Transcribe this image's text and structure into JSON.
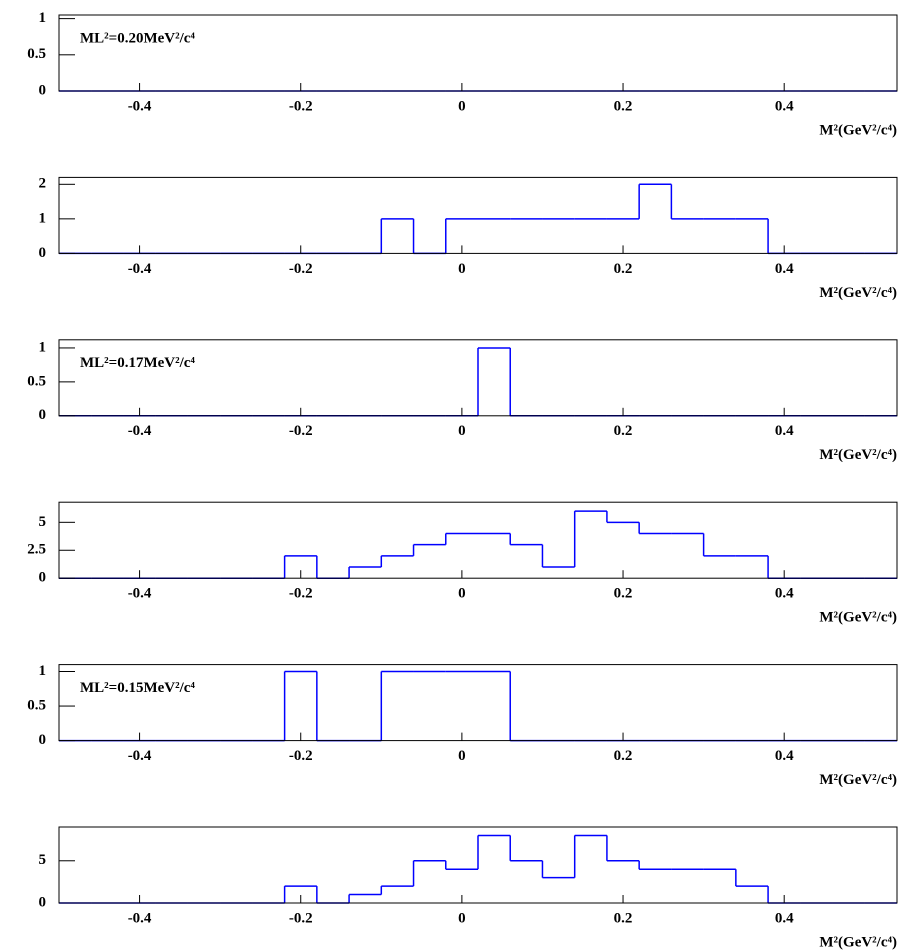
{
  "chart_data": [
    {
      "type": "histogram",
      "annotation": "ML²=0.20MeV²/c⁴",
      "xlabel": "M²(GeV²/c⁴)",
      "color": "#0000ff",
      "bins": [
        -0.5,
        -0.46,
        -0.42,
        -0.38,
        -0.34,
        -0.3,
        -0.26,
        -0.22,
        -0.18,
        -0.14,
        -0.1,
        -0.06,
        -0.02,
        0.02,
        0.06,
        0.1,
        0.14,
        0.18,
        0.22,
        0.26,
        0.3,
        0.34,
        0.38,
        0.42,
        0.46,
        0.5,
        0.54
      ],
      "values": [
        0,
        0,
        0,
        0,
        0,
        0,
        0,
        0,
        0,
        0,
        0,
        0,
        0,
        0,
        0,
        0,
        0,
        0,
        0,
        0,
        0,
        0,
        0,
        0,
        0,
        0
      ],
      "xlim": [
        -0.5,
        0.54
      ],
      "xticks": [
        -0.4,
        -0.2,
        0,
        0.2,
        0.4
      ],
      "ylim": [
        0,
        1.05
      ],
      "yticks": [
        0,
        0.5,
        1
      ]
    },
    {
      "type": "histogram",
      "xlabel": "M²(GeV²/c⁴)",
      "color": "#0000ff",
      "bins": [
        -0.5,
        -0.46,
        -0.42,
        -0.38,
        -0.34,
        -0.3,
        -0.26,
        -0.22,
        -0.18,
        -0.14,
        -0.1,
        -0.06,
        -0.02,
        0.02,
        0.06,
        0.1,
        0.14,
        0.18,
        0.22,
        0.26,
        0.3,
        0.34,
        0.38,
        0.42,
        0.46,
        0.5,
        0.54
      ],
      "values": [
        0,
        0,
        0,
        0,
        0,
        0,
        0,
        0,
        0,
        0,
        1,
        0,
        1,
        1,
        1,
        1,
        1,
        1,
        2,
        1,
        1,
        1,
        0,
        0,
        0,
        0
      ],
      "xlim": [
        -0.5,
        0.54
      ],
      "xticks": [
        -0.4,
        -0.2,
        0,
        0.2,
        0.4
      ],
      "ylim": [
        0,
        2.2
      ],
      "yticks": [
        0,
        1,
        2
      ]
    },
    {
      "type": "histogram",
      "annotation": "ML²=0.17MeV²/c⁴",
      "xlabel": "M²(GeV²/c⁴)",
      "color": "#0000ff",
      "bins": [
        -0.5,
        -0.46,
        -0.42,
        -0.38,
        -0.34,
        -0.3,
        -0.26,
        -0.22,
        -0.18,
        -0.14,
        -0.1,
        -0.06,
        -0.02,
        0.02,
        0.06,
        0.1,
        0.14,
        0.18,
        0.22,
        0.26,
        0.3,
        0.34,
        0.38,
        0.42,
        0.46,
        0.5,
        0.54
      ],
      "values": [
        0,
        0,
        0,
        0,
        0,
        0,
        0,
        0,
        0,
        0,
        0,
        0,
        0,
        1,
        0,
        0,
        0,
        0,
        0,
        0,
        0,
        0,
        0,
        0,
        0,
        0
      ],
      "xlim": [
        -0.5,
        0.54
      ],
      "xticks": [
        -0.4,
        -0.2,
        0,
        0.2,
        0.4
      ],
      "ylim": [
        0,
        1.12
      ],
      "yticks": [
        0,
        0.5,
        1
      ]
    },
    {
      "type": "histogram",
      "xlabel": "M²(GeV²/c⁴)",
      "color": "#0000ff",
      "bins": [
        -0.5,
        -0.46,
        -0.42,
        -0.38,
        -0.34,
        -0.3,
        -0.26,
        -0.22,
        -0.18,
        -0.14,
        -0.1,
        -0.06,
        -0.02,
        0.02,
        0.06,
        0.1,
        0.14,
        0.18,
        0.22,
        0.26,
        0.3,
        0.34,
        0.38,
        0.42,
        0.46,
        0.5,
        0.54
      ],
      "values": [
        0,
        0,
        0,
        0,
        0,
        0,
        0,
        2,
        0,
        1,
        2,
        3,
        4,
        4,
        3,
        1,
        6,
        5,
        4,
        4,
        2,
        2,
        0,
        0,
        0,
        0
      ],
      "xlim": [
        -0.5,
        0.54
      ],
      "xticks": [
        -0.4,
        -0.2,
        0,
        0.2,
        0.4
      ],
      "ylim": [
        0,
        6.8
      ],
      "yticks": [
        0,
        2.5,
        5
      ]
    },
    {
      "type": "histogram",
      "annotation": "ML²=0.15MeV²/c⁴",
      "xlabel": "M²(GeV²/c⁴)",
      "color": "#0000ff",
      "bins": [
        -0.5,
        -0.46,
        -0.42,
        -0.38,
        -0.34,
        -0.3,
        -0.26,
        -0.22,
        -0.18,
        -0.14,
        -0.1,
        -0.06,
        -0.02,
        0.02,
        0.06,
        0.1,
        0.14,
        0.18,
        0.22,
        0.26,
        0.3,
        0.34,
        0.38,
        0.42,
        0.46,
        0.5,
        0.54
      ],
      "values": [
        0,
        0,
        0,
        0,
        0,
        0,
        0,
        1,
        0,
        0,
        1,
        1,
        1,
        1,
        0,
        0,
        0,
        0,
        0,
        0,
        0,
        0,
        0,
        0,
        0,
        0
      ],
      "xlim": [
        -0.5,
        0.54
      ],
      "xticks": [
        -0.4,
        -0.2,
        0,
        0.2,
        0.4
      ],
      "ylim": [
        0,
        1.1
      ],
      "yticks": [
        0,
        0.5,
        1
      ]
    },
    {
      "type": "histogram",
      "xlabel": "M²(GeV²/c⁴)",
      "color": "#0000ff",
      "bins": [
        -0.5,
        -0.46,
        -0.42,
        -0.38,
        -0.34,
        -0.3,
        -0.26,
        -0.22,
        -0.18,
        -0.14,
        -0.1,
        -0.06,
        -0.02,
        0.02,
        0.06,
        0.1,
        0.14,
        0.18,
        0.22,
        0.26,
        0.3,
        0.34,
        0.38,
        0.42,
        0.46,
        0.5,
        0.54
      ],
      "values": [
        0,
        0,
        0,
        0,
        0,
        0,
        0,
        2,
        0,
        1,
        2,
        5,
        4,
        8,
        5,
        3,
        8,
        5,
        4,
        4,
        4,
        2,
        0,
        0,
        0,
        0
      ],
      "xlim": [
        -0.5,
        0.54
      ],
      "xticks": [
        -0.4,
        -0.2,
        0,
        0.2,
        0.4
      ],
      "ylim": [
        0,
        9
      ],
      "yticks": [
        0,
        5
      ]
    }
  ]
}
